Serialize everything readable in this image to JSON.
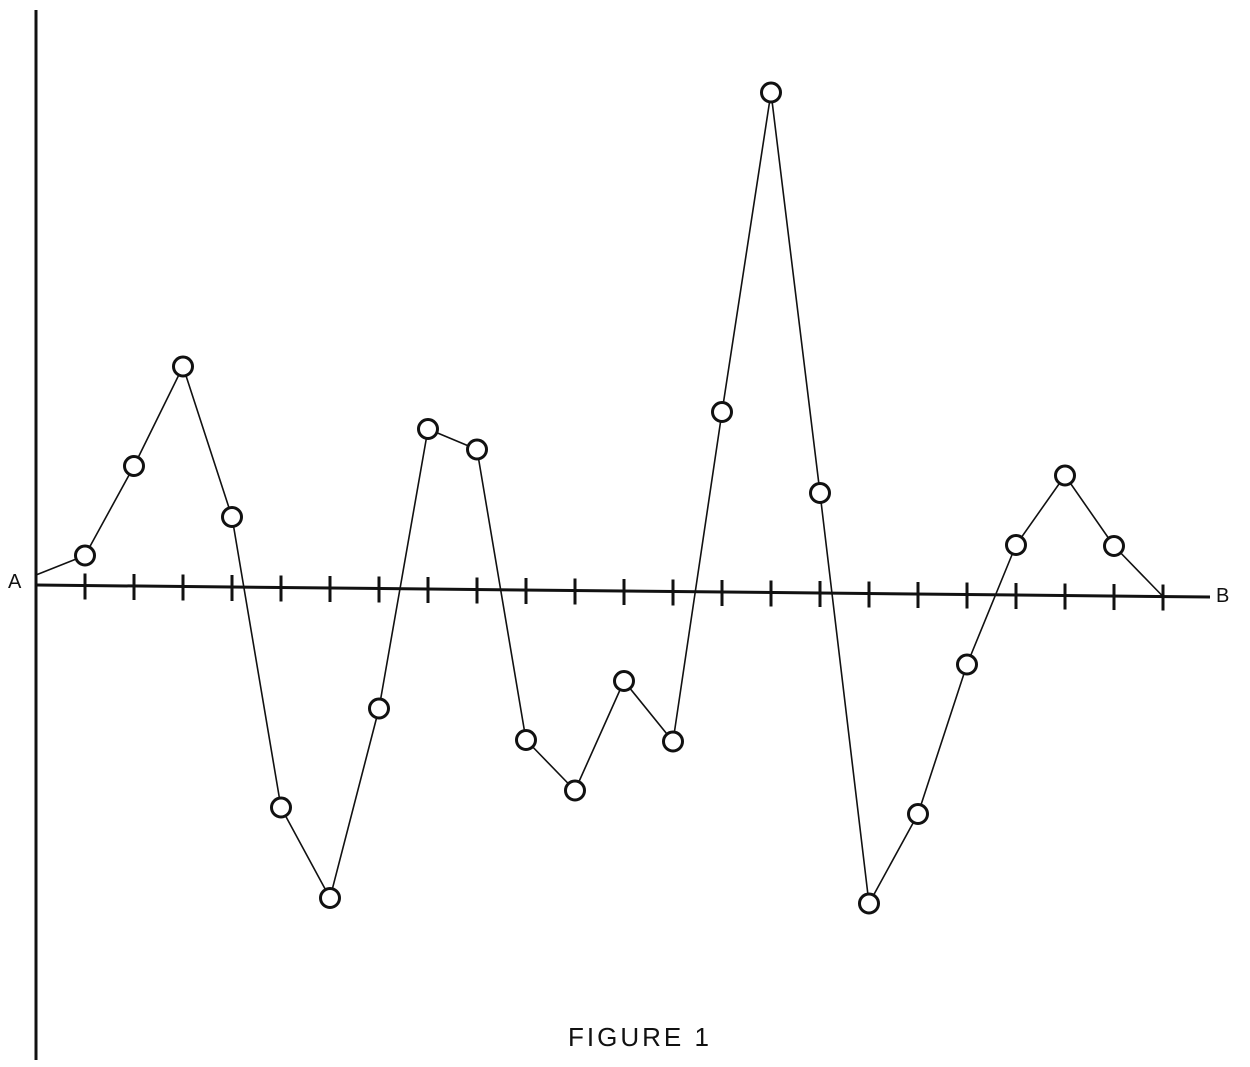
{
  "caption": "FIGURE 1",
  "chart_data": {
    "type": "line",
    "start_label": "A",
    "end_label": "B",
    "x": [
      0,
      1,
      2,
      3,
      4,
      5,
      6,
      7,
      8,
      9,
      10,
      11,
      12,
      13,
      14,
      15,
      16,
      17,
      18,
      19,
      20,
      21,
      22,
      23
    ],
    "values": [
      0.1,
      0.3,
      1.2,
      2.2,
      0.7,
      -2.2,
      -3.1,
      -1.2,
      1.6,
      1.4,
      -1.5,
      -2.0,
      -0.9,
      -1.5,
      1.8,
      5.0,
      1.0,
      -3.1,
      -2.2,
      -0.7,
      0.5,
      1.2,
      0.5,
      0.0
    ],
    "tick_count": 23,
    "marker": "open-circle",
    "grid": false,
    "ylim": [
      -4.1,
      5.5
    ]
  }
}
